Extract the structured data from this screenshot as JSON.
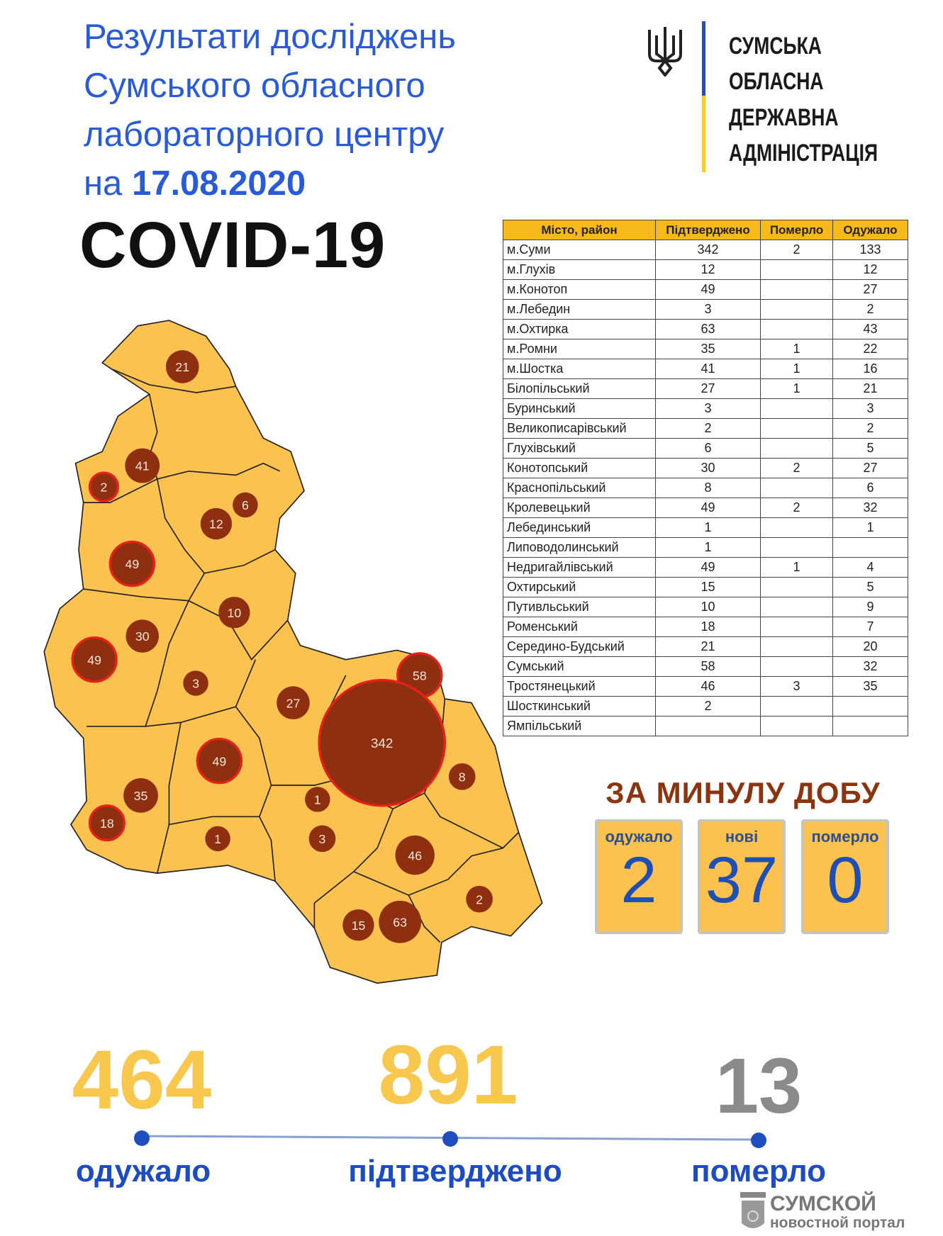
{
  "header": {
    "title_lines": [
      "Результати досліджень",
      "Сумського обласного",
      "лабораторного центру"
    ],
    "date_prefix": "на",
    "date": "17.08.2020",
    "subject": "COVID-19"
  },
  "logo": {
    "emblem": "trident-icon",
    "lines": [
      "СУМСЬКА",
      "ОБЛАСНА",
      "ДЕРЖАВНА",
      "АДМІНІСТРАЦІЯ"
    ],
    "bar_colors": [
      "#2c4ea8",
      "#f5cc32"
    ]
  },
  "table": {
    "columns": [
      "Місто, район",
      "Підтверджено",
      "Померло",
      "Одужало"
    ],
    "rows": [
      [
        "м.Суми",
        "342",
        "2",
        "133"
      ],
      [
        "м.Глухів",
        "12",
        "",
        "12"
      ],
      [
        "м.Конотоп",
        "49",
        "",
        "27"
      ],
      [
        "м.Лебедин",
        "3",
        "",
        "2"
      ],
      [
        "м.Охтирка",
        "63",
        "",
        "43"
      ],
      [
        "м.Ромни",
        "35",
        "1",
        "22"
      ],
      [
        "м.Шостка",
        "41",
        "1",
        "16"
      ],
      [
        "Білопільський",
        "27",
        "1",
        "21"
      ],
      [
        "Буринський",
        "3",
        "",
        "3"
      ],
      [
        "Великописарівський",
        "2",
        "",
        "2"
      ],
      [
        "Глухівський",
        "6",
        "",
        "5"
      ],
      [
        "Конотопський",
        "30",
        "2",
        "27"
      ],
      [
        "Краснопільський",
        "8",
        "",
        "6"
      ],
      [
        "Кролевецький",
        "49",
        "2",
        "32"
      ],
      [
        "Лебединський",
        "1",
        "",
        "1"
      ],
      [
        "Липоводолинський",
        "1",
        "",
        ""
      ],
      [
        "Недригайлівський",
        "49",
        "1",
        "4"
      ],
      [
        "Охтирський",
        "15",
        "",
        "5"
      ],
      [
        "Путивльський",
        "10",
        "",
        "9"
      ],
      [
        "Роменський",
        "18",
        "",
        "7"
      ],
      [
        "Середино-Будський",
        "21",
        "",
        "20"
      ],
      [
        "Сумський",
        "58",
        "",
        "32"
      ],
      [
        "Тростянецький",
        "46",
        "3",
        "35"
      ],
      [
        "Шосткинський",
        "2",
        "",
        ""
      ],
      [
        "Ямпільський",
        "",
        "",
        ""
      ]
    ],
    "header_color": "#f7b819"
  },
  "map": {
    "fill_color": "#fbc24f",
    "bubble_color": "#8e3010",
    "highlight_color": "#e8201a",
    "bubbles": [
      "21",
      "41",
      "2",
      "6",
      "12",
      "49",
      "10",
      "30",
      "49",
      "3",
      "27",
      "58",
      "342",
      "49",
      "8",
      "35",
      "1",
      "18",
      "1",
      "3",
      "46",
      "2",
      "15",
      "63"
    ]
  },
  "daily": {
    "title": "ЗА МИНУЛУ ДОБУ",
    "recovered_label": "одужало",
    "recovered": "2",
    "new_label": "нові",
    "new": "37",
    "died_label": "померло",
    "died": "0"
  },
  "totals": {
    "recovered": "464",
    "recovered_label": "одужало",
    "confirmed": "891",
    "confirmed_label": "підтверджено",
    "died": "13",
    "died_label": "померло",
    "colors": {
      "recovered": "#f8c84e",
      "confirmed": "#f8c84e",
      "died": "#8a8a8a",
      "labels": "#1d4cc0"
    }
  },
  "watermark": {
    "line1": "СУМСКОЙ",
    "line2": "новостной портал",
    "emblem_text": "СУМСКОЙ"
  }
}
